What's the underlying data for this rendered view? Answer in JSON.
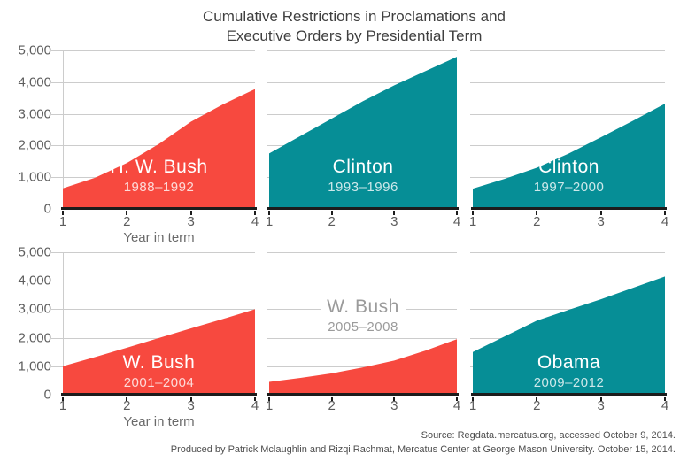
{
  "title": {
    "line1": "Cumulative Restrictions in Proclamations and",
    "line2": "Executive Orders by Presidential Term"
  },
  "axes": {
    "xlabel": "Year in term",
    "xticks": [
      "1",
      "2",
      "3",
      "4"
    ],
    "yticks": [
      "5,000",
      "4,000",
      "3,000",
      "2,000",
      "1,000",
      "0"
    ],
    "xlim": [
      1,
      4
    ],
    "ylim": [
      0,
      5000
    ],
    "grid": "horizontal"
  },
  "colors": {
    "red": "#f7493f",
    "teal": "#068e96",
    "grid": "#cccccc",
    "axis": "#1c1c1c",
    "title_text": "#3f3f3f",
    "tick_text": "#5d5d5d",
    "muted_label": "#9b9b9b",
    "footer_text": "#4e4e4e"
  },
  "chart_data": [
    {
      "type": "area",
      "name": "H. W. Bush",
      "term": "1988–1992",
      "color_key": "red",
      "label_style": "light",
      "x": [
        1,
        1.5,
        2,
        2.5,
        3,
        3.5,
        4
      ],
      "values": [
        650,
        980,
        1450,
        2050,
        2750,
        3300,
        3780
      ]
    },
    {
      "type": "area",
      "name": "Clinton",
      "term": "1993–1996",
      "color_key": "teal",
      "label_style": "light",
      "x": [
        1,
        1.5,
        2,
        2.5,
        3,
        3.5,
        4
      ],
      "values": [
        1750,
        2300,
        2850,
        3400,
        3900,
        4350,
        4800
      ]
    },
    {
      "type": "area",
      "name": "Clinton",
      "term": "1997–2000",
      "color_key": "teal",
      "label_style": "light",
      "x": [
        1,
        1.5,
        2,
        2.5,
        3,
        3.5,
        4
      ],
      "values": [
        640,
        950,
        1300,
        1750,
        2260,
        2780,
        3320
      ]
    },
    {
      "type": "area",
      "name": "W. Bush",
      "term": "2001–2004",
      "color_key": "red",
      "label_style": "light",
      "x": [
        1,
        1.5,
        2,
        2.5,
        3,
        3.5,
        4
      ],
      "values": [
        1000,
        1320,
        1650,
        1990,
        2330,
        2660,
        3000
      ]
    },
    {
      "type": "area",
      "name": "W. Bush",
      "term": "2005–2008",
      "color_key": "red",
      "label_style": "muted",
      "x": [
        1,
        1.5,
        2,
        2.5,
        3,
        3.5,
        4
      ],
      "values": [
        450,
        590,
        750,
        960,
        1200,
        1550,
        1950
      ]
    },
    {
      "type": "area",
      "name": "Obama",
      "term": "2009–2012",
      "color_key": "teal",
      "label_style": "light",
      "x": [
        1,
        1.5,
        2,
        2.5,
        3,
        3.5,
        4
      ],
      "values": [
        1500,
        2050,
        2600,
        2980,
        3350,
        3750,
        4150
      ]
    }
  ],
  "footer": {
    "line1": "Source: Regdata.mercatus.org, accessed October 9, 2014.",
    "line2": "Produced by Patrick Mclaughlin and Rizqi Rachmat, Mercatus Center at George Mason University. October 15, 2014."
  }
}
